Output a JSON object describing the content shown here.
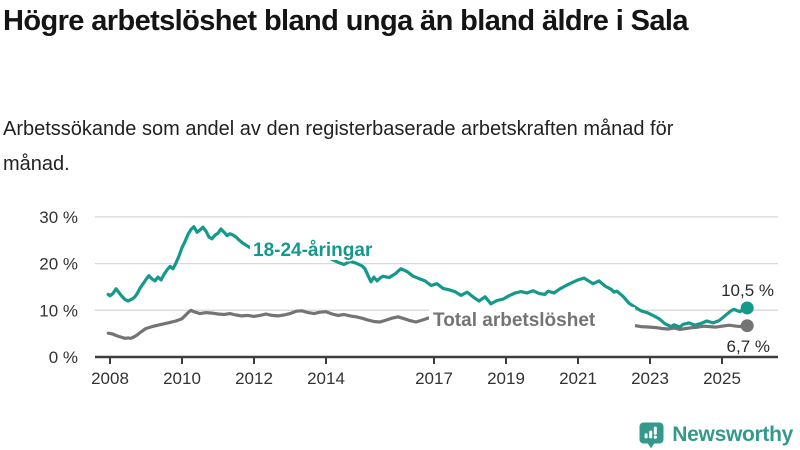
{
  "header": {
    "title": "Högre arbetslöshet bland unga än bland äldre i Sala",
    "subtitle": "Arbetssökande som andel av den registerbaserade arbetskraften månad för månad."
  },
  "footer": {
    "brand": "Newsworthy"
  },
  "colors": {
    "accent_teal": "#14998c",
    "series_gray": "#747474",
    "grid": "#d9d9d9",
    "axis": "#3d3d3d",
    "tick_text": "#333333",
    "value_text": "#2b2b2b",
    "brand": "#33998d"
  },
  "chart_data": {
    "type": "line",
    "title": "Högre arbetslöshet bland unga än bland äldre i Sala",
    "subtitle": "Arbetssökande som andel av den registerbaserade arbetskraften månad för månad.",
    "unit": "%",
    "grid": true,
    "legend_position": "inline-labels-on-lines",
    "xlabel": "",
    "ylabel": "",
    "x_range": [
      2008,
      2025.7
    ],
    "ylim": [
      0,
      32
    ],
    "y_ticks": [
      0,
      10,
      20,
      30
    ],
    "y_tick_labels": [
      "0 %",
      "10 %",
      "20 %",
      "30 %"
    ],
    "x_ticks": [
      2008,
      2010,
      2012,
      2014,
      2017,
      2019,
      2021,
      2023,
      2025
    ],
    "x_tick_labels": [
      "2008",
      "2010",
      "2012",
      "2014",
      "2017",
      "2019",
      "2021",
      "2023",
      "2025"
    ],
    "series": [
      {
        "name": "Total arbetslöshet",
        "color": "#747474",
        "end_value": 6.7,
        "end_label": "6,7 %",
        "points": [
          [
            2007.95,
            5.1
          ],
          [
            2008.08,
            4.9
          ],
          [
            2008.17,
            4.6
          ],
          [
            2008.25,
            4.4
          ],
          [
            2008.33,
            4.2
          ],
          [
            2008.42,
            4.0
          ],
          [
            2008.5,
            4.1
          ],
          [
            2008.58,
            4.0
          ],
          [
            2008.67,
            4.3
          ],
          [
            2008.75,
            4.7
          ],
          [
            2008.83,
            5.2
          ],
          [
            2008.92,
            5.7
          ],
          [
            2009.0,
            6.1
          ],
          [
            2009.17,
            6.5
          ],
          [
            2009.33,
            6.8
          ],
          [
            2009.5,
            7.1
          ],
          [
            2009.67,
            7.4
          ],
          [
            2009.83,
            7.7
          ],
          [
            2010.0,
            8.2
          ],
          [
            2010.08,
            8.8
          ],
          [
            2010.17,
            9.5
          ],
          [
            2010.25,
            10.0
          ],
          [
            2010.33,
            9.7
          ],
          [
            2010.5,
            9.3
          ],
          [
            2010.67,
            9.5
          ],
          [
            2010.83,
            9.4
          ],
          [
            2011.0,
            9.2
          ],
          [
            2011.17,
            9.1
          ],
          [
            2011.33,
            9.3
          ],
          [
            2011.5,
            9.0
          ],
          [
            2011.67,
            8.8
          ],
          [
            2011.83,
            8.9
          ],
          [
            2012.0,
            8.7
          ],
          [
            2012.17,
            8.9
          ],
          [
            2012.33,
            9.2
          ],
          [
            2012.5,
            8.9
          ],
          [
            2012.67,
            8.8
          ],
          [
            2012.83,
            9.0
          ],
          [
            2013.0,
            9.3
          ],
          [
            2013.17,
            9.8
          ],
          [
            2013.33,
            9.9
          ],
          [
            2013.5,
            9.5
          ],
          [
            2013.67,
            9.3
          ],
          [
            2013.83,
            9.6
          ],
          [
            2014.0,
            9.7
          ],
          [
            2014.17,
            9.2
          ],
          [
            2014.33,
            8.9
          ],
          [
            2014.5,
            9.1
          ],
          [
            2014.67,
            8.8
          ],
          [
            2014.83,
            8.6
          ],
          [
            2015.0,
            8.3
          ],
          [
            2015.17,
            7.9
          ],
          [
            2015.33,
            7.6
          ],
          [
            2015.5,
            7.5
          ],
          [
            2015.67,
            7.9
          ],
          [
            2015.83,
            8.3
          ],
          [
            2016.0,
            8.6
          ],
          [
            2016.17,
            8.2
          ],
          [
            2016.33,
            7.8
          ],
          [
            2016.5,
            7.5
          ],
          [
            2016.67,
            7.9
          ],
          [
            2016.83,
            8.3
          ],
          [
            2017.0,
            8.6
          ],
          [
            2017.25,
            8.4
          ],
          [
            2017.5,
            8.2
          ],
          [
            2017.75,
            7.9
          ],
          [
            2018.0,
            7.7
          ],
          [
            2018.25,
            7.5
          ],
          [
            2018.5,
            7.3
          ],
          [
            2018.75,
            7.2
          ],
          [
            2019.0,
            7.3
          ],
          [
            2019.25,
            7.1
          ],
          [
            2019.5,
            7.0
          ],
          [
            2019.75,
            7.2
          ],
          [
            2020.0,
            7.4
          ],
          [
            2020.25,
            8.3
          ],
          [
            2020.5,
            8.7
          ],
          [
            2020.75,
            8.6
          ],
          [
            2021.0,
            8.5
          ],
          [
            2021.25,
            8.2
          ],
          [
            2021.5,
            7.9
          ],
          [
            2021.75,
            7.6
          ],
          [
            2022.0,
            7.4
          ],
          [
            2022.25,
            7.1
          ],
          [
            2022.5,
            6.8
          ],
          [
            2022.75,
            6.5
          ],
          [
            2023.0,
            6.4
          ],
          [
            2023.17,
            6.3
          ],
          [
            2023.33,
            6.1
          ],
          [
            2023.5,
            6.0
          ],
          [
            2023.67,
            6.2
          ],
          [
            2023.83,
            5.9
          ],
          [
            2024.0,
            6.1
          ],
          [
            2024.17,
            6.3
          ],
          [
            2024.33,
            6.4
          ],
          [
            2024.5,
            6.6
          ],
          [
            2024.67,
            6.5
          ],
          [
            2024.83,
            6.4
          ],
          [
            2025.0,
            6.6
          ],
          [
            2025.2,
            6.8
          ],
          [
            2025.4,
            6.6
          ],
          [
            2025.55,
            6.5
          ],
          [
            2025.7,
            6.7
          ]
        ]
      },
      {
        "name": "18-24-åringar",
        "color": "#14998c",
        "end_value": 10.5,
        "end_label": "10,5 %",
        "points": [
          [
            2007.95,
            13.4
          ],
          [
            2008.0,
            13.1
          ],
          [
            2008.08,
            13.6
          ],
          [
            2008.17,
            14.6
          ],
          [
            2008.25,
            13.8
          ],
          [
            2008.33,
            13.0
          ],
          [
            2008.42,
            12.3
          ],
          [
            2008.5,
            12.0
          ],
          [
            2008.58,
            12.3
          ],
          [
            2008.67,
            12.7
          ],
          [
            2008.75,
            13.5
          ],
          [
            2008.83,
            14.7
          ],
          [
            2008.92,
            15.7
          ],
          [
            2009.0,
            16.6
          ],
          [
            2009.08,
            17.4
          ],
          [
            2009.17,
            16.7
          ],
          [
            2009.25,
            16.3
          ],
          [
            2009.33,
            17.1
          ],
          [
            2009.42,
            16.5
          ],
          [
            2009.5,
            17.7
          ],
          [
            2009.58,
            18.6
          ],
          [
            2009.67,
            19.4
          ],
          [
            2009.75,
            18.9
          ],
          [
            2009.83,
            20.1
          ],
          [
            2009.92,
            21.7
          ],
          [
            2010.0,
            23.4
          ],
          [
            2010.08,
            24.7
          ],
          [
            2010.17,
            26.3
          ],
          [
            2010.25,
            27.3
          ],
          [
            2010.33,
            27.9
          ],
          [
            2010.42,
            26.7
          ],
          [
            2010.5,
            27.2
          ],
          [
            2010.58,
            27.8
          ],
          [
            2010.67,
            26.9
          ],
          [
            2010.75,
            25.7
          ],
          [
            2010.83,
            25.3
          ],
          [
            2010.92,
            26.1
          ],
          [
            2011.0,
            26.5
          ],
          [
            2011.08,
            27.4
          ],
          [
            2011.17,
            26.7
          ],
          [
            2011.25,
            26.0
          ],
          [
            2011.33,
            26.4
          ],
          [
            2011.42,
            26.1
          ],
          [
            2011.5,
            25.7
          ],
          [
            2011.58,
            25.1
          ],
          [
            2011.67,
            24.5
          ],
          [
            2011.75,
            24.1
          ],
          [
            2011.83,
            23.7
          ],
          [
            2011.92,
            23.3
          ],
          [
            2012.0,
            23.7
          ],
          [
            2012.17,
            24.3
          ],
          [
            2012.33,
            23.9
          ],
          [
            2012.5,
            23.1
          ],
          [
            2012.67,
            22.5
          ],
          [
            2012.83,
            22.1
          ],
          [
            2013.0,
            22.7
          ],
          [
            2013.17,
            23.1
          ],
          [
            2013.33,
            22.5
          ],
          [
            2013.5,
            21.9
          ],
          [
            2013.67,
            21.5
          ],
          [
            2013.83,
            21.9
          ],
          [
            2014.0,
            21.5
          ],
          [
            2014.17,
            20.9
          ],
          [
            2014.33,
            20.3
          ],
          [
            2014.5,
            19.8
          ],
          [
            2014.67,
            20.5
          ],
          [
            2014.83,
            20.1
          ],
          [
            2015.0,
            19.5
          ],
          [
            2015.08,
            18.9
          ],
          [
            2015.17,
            17.4
          ],
          [
            2015.25,
            16.1
          ],
          [
            2015.33,
            17.1
          ],
          [
            2015.42,
            16.3
          ],
          [
            2015.5,
            16.9
          ],
          [
            2015.58,
            17.3
          ],
          [
            2015.75,
            17.0
          ],
          [
            2015.92,
            17.8
          ],
          [
            2016.08,
            18.9
          ],
          [
            2016.25,
            18.3
          ],
          [
            2016.42,
            17.3
          ],
          [
            2016.58,
            16.8
          ],
          [
            2016.75,
            16.3
          ],
          [
            2016.92,
            15.3
          ],
          [
            2017.08,
            15.7
          ],
          [
            2017.25,
            14.7
          ],
          [
            2017.42,
            14.4
          ],
          [
            2017.58,
            14.0
          ],
          [
            2017.75,
            13.2
          ],
          [
            2017.92,
            13.9
          ],
          [
            2018.08,
            12.9
          ],
          [
            2018.25,
            12.0
          ],
          [
            2018.42,
            12.9
          ],
          [
            2018.58,
            11.4
          ],
          [
            2018.75,
            12.1
          ],
          [
            2018.92,
            12.4
          ],
          [
            2019.08,
            13.1
          ],
          [
            2019.25,
            13.7
          ],
          [
            2019.42,
            14.0
          ],
          [
            2019.58,
            13.7
          ],
          [
            2019.75,
            14.2
          ],
          [
            2019.92,
            13.6
          ],
          [
            2020.08,
            13.4
          ],
          [
            2020.17,
            14.1
          ],
          [
            2020.33,
            13.7
          ],
          [
            2020.5,
            14.6
          ],
          [
            2020.67,
            15.3
          ],
          [
            2020.83,
            15.9
          ],
          [
            2021.0,
            16.5
          ],
          [
            2021.17,
            16.9
          ],
          [
            2021.33,
            16.1
          ],
          [
            2021.42,
            15.7
          ],
          [
            2021.58,
            16.3
          ],
          [
            2021.75,
            15.2
          ],
          [
            2021.92,
            14.5
          ],
          [
            2022.0,
            13.9
          ],
          [
            2022.08,
            14.1
          ],
          [
            2022.25,
            13.0
          ],
          [
            2022.42,
            11.5
          ],
          [
            2022.58,
            10.7
          ],
          [
            2022.75,
            9.9
          ],
          [
            2022.92,
            9.5
          ],
          [
            2023.08,
            8.9
          ],
          [
            2023.25,
            8.2
          ],
          [
            2023.42,
            7.1
          ],
          [
            2023.58,
            6.5
          ],
          [
            2023.67,
            6.9
          ],
          [
            2023.83,
            6.4
          ],
          [
            2023.92,
            7.0
          ],
          [
            2024.08,
            7.3
          ],
          [
            2024.25,
            6.8
          ],
          [
            2024.42,
            7.2
          ],
          [
            2024.58,
            7.7
          ],
          [
            2024.75,
            7.3
          ],
          [
            2024.92,
            7.8
          ],
          [
            2025.08,
            8.8
          ],
          [
            2025.25,
            9.9
          ],
          [
            2025.33,
            10.2
          ],
          [
            2025.5,
            9.7
          ],
          [
            2025.6,
            10.3
          ],
          [
            2025.7,
            10.5
          ]
        ]
      }
    ]
  }
}
